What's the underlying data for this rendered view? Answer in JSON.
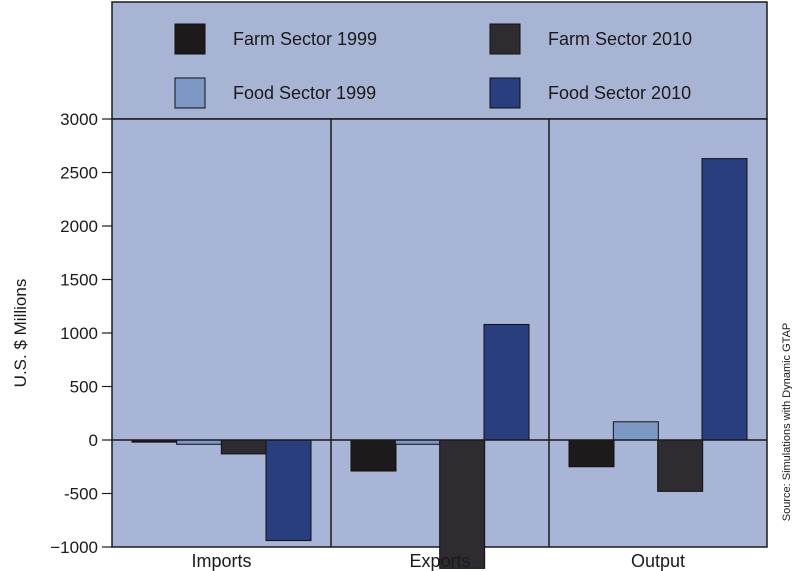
{
  "chart_data": {
    "type": "bar",
    "categories": [
      "Imports",
      "Exports",
      "Output"
    ],
    "series": [
      {
        "name": "Farm Sector 1999",
        "color": "#1c1a1b",
        "values": [
          -20,
          -290,
          -250
        ]
      },
      {
        "name": "Food Sector 1999",
        "color": "#7e98c6",
        "values": [
          -40,
          -40,
          170
        ]
      },
      {
        "name": "Farm Sector 2010",
        "color": "#2e2b31",
        "values": [
          -130,
          -1200,
          -480
        ]
      },
      {
        "name": "Food Sector 2010",
        "color": "#293e7e",
        "values": [
          -940,
          1080,
          2630
        ]
      }
    ],
    "ylabel": "U.S. $ Millions",
    "ylim": [
      -1000,
      3000
    ],
    "yticks": [
      3000,
      2500,
      2000,
      1500,
      1000,
      500,
      0,
      -500,
      -1000
    ],
    "ytick_labels": [
      "3000",
      "2500",
      "2000",
      "1500",
      "1000",
      "500",
      "0",
      "-500",
      "−1000"
    ],
    "grid": false,
    "legend_position": "top",
    "source_note": "Source: Simulations with Dynamic GTAP",
    "colors": {
      "plot_bg": "#a9b5d6",
      "legend_bg": "#a7b4d3",
      "zero_line": "#1a1a1a"
    }
  }
}
